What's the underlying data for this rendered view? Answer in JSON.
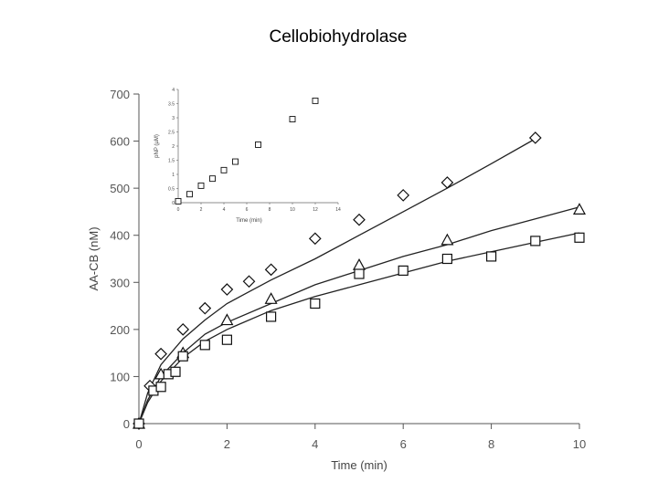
{
  "page": {
    "title": "Cellobiohydrolase"
  },
  "chart_data": {
    "type": "scatter",
    "title": "Cellobiohydrolase",
    "xlabel": "Time (min)",
    "ylabel": "AA-CB (nM)",
    "xlim": [
      0,
      10
    ],
    "ylim": [
      0,
      700
    ],
    "x_ticks": [
      "0",
      "2",
      "4",
      "6",
      "8",
      "10"
    ],
    "y_ticks": [
      "0",
      "100",
      "200",
      "300",
      "400",
      "500",
      "600",
      "700"
    ],
    "series": [
      {
        "name": "diamonds",
        "marker": "diamond",
        "points": [
          [
            0,
            0
          ],
          [
            0.25,
            80
          ],
          [
            0.5,
            148
          ],
          [
            1,
            200
          ],
          [
            1.5,
            245
          ],
          [
            2,
            285
          ],
          [
            2.5,
            302
          ],
          [
            3,
            327
          ],
          [
            4,
            393
          ],
          [
            5,
            433
          ],
          [
            6,
            485
          ],
          [
            7,
            512
          ],
          [
            9,
            607
          ]
        ],
        "fit": [
          [
            0,
            0
          ],
          [
            0.2,
            65
          ],
          [
            0.5,
            125
          ],
          [
            1,
            180
          ],
          [
            1.5,
            220
          ],
          [
            2,
            255
          ],
          [
            2.5,
            280
          ],
          [
            3,
            305
          ],
          [
            4,
            350
          ],
          [
            5,
            400
          ],
          [
            6,
            450
          ],
          [
            7,
            500
          ],
          [
            8,
            552
          ],
          [
            9,
            605
          ]
        ]
      },
      {
        "name": "triangles",
        "marker": "triangle",
        "points": [
          [
            0,
            0
          ],
          [
            0.5,
            105
          ],
          [
            1,
            150
          ],
          [
            2,
            220
          ],
          [
            3,
            265
          ],
          [
            5,
            337
          ],
          [
            7,
            390
          ],
          [
            10,
            455
          ]
        ],
        "fit": [
          [
            0,
            0
          ],
          [
            0.2,
            50
          ],
          [
            0.5,
            100
          ],
          [
            1,
            150
          ],
          [
            1.5,
            190
          ],
          [
            2,
            215
          ],
          [
            3,
            255
          ],
          [
            4,
            295
          ],
          [
            5,
            325
          ],
          [
            6,
            355
          ],
          [
            7,
            380
          ],
          [
            8,
            410
          ],
          [
            9,
            435
          ],
          [
            10,
            460
          ]
        ]
      },
      {
        "name": "squares",
        "marker": "square",
        "points": [
          [
            0,
            0
          ],
          [
            0.33,
            70
          ],
          [
            0.5,
            78
          ],
          [
            0.67,
            105
          ],
          [
            0.83,
            110
          ],
          [
            1,
            143
          ],
          [
            1.5,
            167
          ],
          [
            2,
            178
          ],
          [
            3,
            227
          ],
          [
            4,
            255
          ],
          [
            5,
            318
          ],
          [
            6,
            325
          ],
          [
            7,
            350
          ],
          [
            8,
            355
          ],
          [
            9,
            388
          ],
          [
            10,
            395
          ]
        ],
        "fit": [
          [
            0,
            0
          ],
          [
            0.2,
            45
          ],
          [
            0.5,
            90
          ],
          [
            1,
            140
          ],
          [
            1.5,
            175
          ],
          [
            2,
            200
          ],
          [
            3,
            240
          ],
          [
            4,
            270
          ],
          [
            5,
            295
          ],
          [
            6,
            320
          ],
          [
            7,
            345
          ],
          [
            8,
            365
          ],
          [
            9,
            385
          ],
          [
            10,
            405
          ]
        ]
      }
    ],
    "inset": {
      "type": "scatter",
      "xlabel": "Time (min)",
      "ylabel": "pNP (µM)",
      "xlim": [
        0,
        14
      ],
      "ylim": [
        0,
        4
      ],
      "x_ticks": [
        "0",
        "2",
        "4",
        "6",
        "8",
        "10",
        "12",
        "14"
      ],
      "y_ticks": [
        "0",
        "0.5",
        "1",
        "1.5",
        "2",
        "2.5",
        "3",
        "3.5",
        "4"
      ],
      "points": [
        [
          0,
          0.05
        ],
        [
          1,
          0.3
        ],
        [
          2,
          0.6
        ],
        [
          3,
          0.85
        ],
        [
          4,
          1.15
        ],
        [
          5,
          1.45
        ],
        [
          7,
          2.05
        ],
        [
          10,
          2.95
        ],
        [
          12,
          3.6
        ]
      ]
    }
  }
}
